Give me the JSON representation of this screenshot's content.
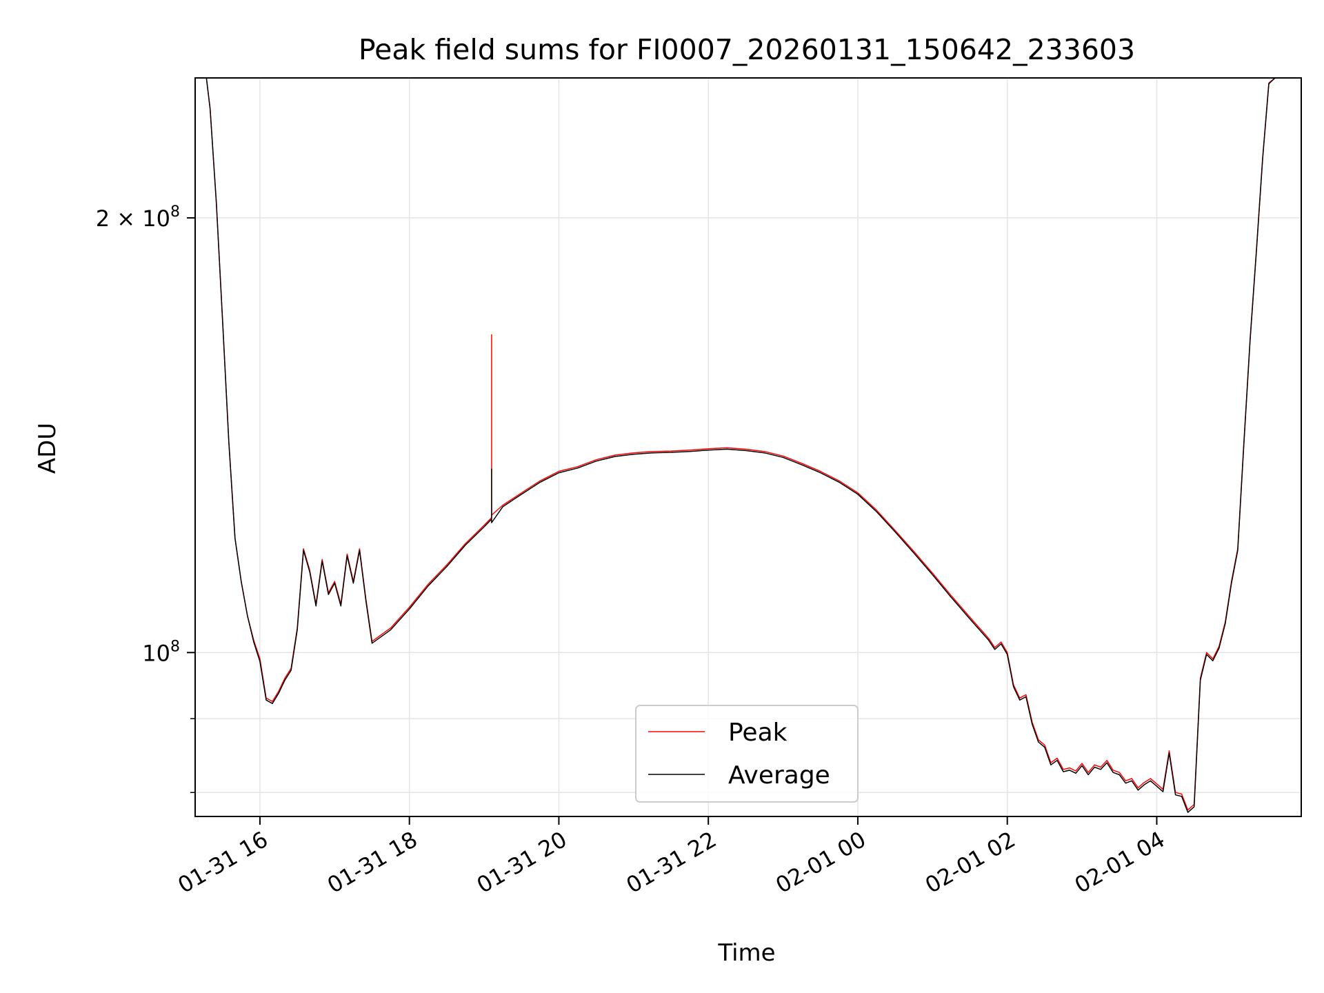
{
  "chart_data": {
    "type": "line",
    "title": "Peak field sums for FI0007_20260131_150642_233603",
    "xlabel": "Time",
    "ylabel": "ADU",
    "yscale": "log",
    "grid": true,
    "legend_position": "bottom-center",
    "x_range": [
      "2026-01-31 15:08",
      "2026-02-01 05:56"
    ],
    "ylim": [
      77000000,
      250000000
    ],
    "x_ticks": [
      {
        "value": "2026-01-31 16:00",
        "label": "01-31 16"
      },
      {
        "value": "2026-01-31 18:00",
        "label": "01-31 18"
      },
      {
        "value": "2026-01-31 20:00",
        "label": "01-31 20"
      },
      {
        "value": "2026-01-31 22:00",
        "label": "01-31 22"
      },
      {
        "value": "2026-02-01 00:00",
        "label": "02-01 00"
      },
      {
        "value": "2026-02-01 02:00",
        "label": "02-01 02"
      },
      {
        "value": "2026-02-01 04:00",
        "label": "02-01 04"
      }
    ],
    "y_ticks": [
      {
        "value": 200000000,
        "base": "2 × 10",
        "exp": "8"
      },
      {
        "value": 100000000,
        "base": "10",
        "exp": "8"
      }
    ],
    "y_minor_ticks": [
      90000000,
      80000000
    ],
    "series": [
      {
        "name": "Peak",
        "color": "#ff0000",
        "x": [
          "2026-01-31 15:17",
          "2026-01-31 15:20",
          "2026-01-31 15:25",
          "2026-01-31 15:30",
          "2026-01-31 15:35",
          "2026-01-31 15:40",
          "2026-01-31 15:45",
          "2026-01-31 15:50",
          "2026-01-31 15:55",
          "2026-01-31 16:00",
          "2026-01-31 16:05",
          "2026-01-31 16:10",
          "2026-01-31 16:15",
          "2026-01-31 16:20",
          "2026-01-31 16:25",
          "2026-01-31 16:30",
          "2026-01-31 16:35",
          "2026-01-31 16:40",
          "2026-01-31 16:45",
          "2026-01-31 16:50",
          "2026-01-31 16:55",
          "2026-01-31 17:00",
          "2026-01-31 17:05",
          "2026-01-31 17:10",
          "2026-01-31 17:15",
          "2026-01-31 17:20",
          "2026-01-31 17:25",
          "2026-01-31 17:30",
          "2026-01-31 17:45",
          "2026-01-31 18:00",
          "2026-01-31 18:15",
          "2026-01-31 18:30",
          "2026-01-31 18:45",
          "2026-01-31 19:00",
          "2026-01-31 19:06",
          "2026-01-31 19:06",
          "2026-01-31 19:06",
          "2026-01-31 19:15",
          "2026-01-31 19:30",
          "2026-01-31 19:45",
          "2026-01-31 20:00",
          "2026-01-31 20:15",
          "2026-01-31 20:30",
          "2026-01-31 20:45",
          "2026-01-31 21:00",
          "2026-01-31 21:15",
          "2026-01-31 21:30",
          "2026-01-31 21:45",
          "2026-01-31 22:00",
          "2026-01-31 22:15",
          "2026-01-31 22:30",
          "2026-01-31 22:45",
          "2026-01-31 23:00",
          "2026-01-31 23:15",
          "2026-01-31 23:30",
          "2026-01-31 23:45",
          "2026-02-01 00:00",
          "2026-02-01 00:15",
          "2026-02-01 00:30",
          "2026-02-01 00:45",
          "2026-02-01 01:00",
          "2026-02-01 01:15",
          "2026-02-01 01:30",
          "2026-02-01 01:45",
          "2026-02-01 01:50",
          "2026-02-01 01:55",
          "2026-02-01 02:00",
          "2026-02-01 02:05",
          "2026-02-01 02:10",
          "2026-02-01 02:15",
          "2026-02-01 02:20",
          "2026-02-01 02:25",
          "2026-02-01 02:30",
          "2026-02-01 02:35",
          "2026-02-01 02:40",
          "2026-02-01 02:45",
          "2026-02-01 02:50",
          "2026-02-01 02:55",
          "2026-02-01 03:00",
          "2026-02-01 03:05",
          "2026-02-01 03:10",
          "2026-02-01 03:15",
          "2026-02-01 03:20",
          "2026-02-01 03:25",
          "2026-02-01 03:30",
          "2026-02-01 03:35",
          "2026-02-01 03:40",
          "2026-02-01 03:45",
          "2026-02-01 03:50",
          "2026-02-01 03:55",
          "2026-02-01 04:00",
          "2026-02-01 04:05",
          "2026-02-01 04:10",
          "2026-02-01 04:15",
          "2026-02-01 04:20",
          "2026-02-01 04:25",
          "2026-02-01 04:30",
          "2026-02-01 04:35",
          "2026-02-01 04:40",
          "2026-02-01 04:45",
          "2026-02-01 04:50",
          "2026-02-01 04:55",
          "2026-02-01 05:00",
          "2026-02-01 05:05",
          "2026-02-01 05:10",
          "2026-02-01 05:15",
          "2026-02-01 05:20",
          "2026-02-01 05:25",
          "2026-02-01 05:30",
          "2026-02-01 05:35",
          "2026-02-01 05:40",
          "2026-02-01 05:45"
        ],
        "y": [
          250000000,
          238000000,
          205000000,
          170000000,
          140000000,
          120000000,
          112000000,
          106000000,
          102000000,
          99000000,
          93000000,
          92500000,
          94000000,
          96000000,
          97500000,
          104000000,
          118000000,
          114000000,
          108000000,
          116000000,
          110000000,
          112000000,
          108000000,
          117000000,
          112000000,
          118000000,
          109000000,
          101800000,
          104000000,
          107500000,
          111500000,
          115000000,
          119000000,
          122500000,
          124000000,
          166000000,
          124500000,
          126500000,
          129000000,
          131500000,
          133500000,
          134500000,
          136000000,
          137000000,
          137500000,
          137800000,
          137900000,
          138100000,
          138400000,
          138600000,
          138300000,
          137800000,
          136800000,
          135200000,
          133500000,
          131500000,
          129000000,
          125500000,
          121500000,
          117500000,
          113500000,
          109500000,
          105800000,
          102300000,
          100800000,
          101700000,
          100000000,
          95000000,
          93000000,
          93500000,
          89500000,
          87000000,
          86300000,
          83900000,
          84500000,
          83000000,
          83200000,
          82800000,
          83800000,
          82600000,
          83600000,
          83300000,
          84200000,
          82900000,
          82600000,
          81500000,
          81800000,
          80600000,
          81300000,
          81800000,
          81100000,
          80400000,
          85500000,
          80000000,
          79800000,
          77800000,
          78500000,
          96000000,
          100000000,
          99000000,
          101000000,
          105000000,
          112000000,
          118000000,
          140000000,
          165000000,
          190000000,
          220000000,
          248000000,
          250000000,
          250000000,
          250000000
        ]
      },
      {
        "name": "Average",
        "color": "#000000",
        "x": [
          "2026-01-31 15:17",
          "2026-01-31 15:20",
          "2026-01-31 15:25",
          "2026-01-31 15:30",
          "2026-01-31 15:35",
          "2026-01-31 15:40",
          "2026-01-31 15:45",
          "2026-01-31 15:50",
          "2026-01-31 15:55",
          "2026-01-31 16:00",
          "2026-01-31 16:05",
          "2026-01-31 16:10",
          "2026-01-31 16:15",
          "2026-01-31 16:20",
          "2026-01-31 16:25",
          "2026-01-31 16:30",
          "2026-01-31 16:35",
          "2026-01-31 16:40",
          "2026-01-31 16:45",
          "2026-01-31 16:50",
          "2026-01-31 16:55",
          "2026-01-31 17:00",
          "2026-01-31 17:05",
          "2026-01-31 17:10",
          "2026-01-31 17:15",
          "2026-01-31 17:20",
          "2026-01-31 17:25",
          "2026-01-31 17:30",
          "2026-01-31 17:45",
          "2026-01-31 18:00",
          "2026-01-31 18:15",
          "2026-01-31 18:30",
          "2026-01-31 18:45",
          "2026-01-31 19:00",
          "2026-01-31 19:06",
          "2026-01-31 19:06",
          "2026-01-31 19:06",
          "2026-01-31 19:15",
          "2026-01-31 19:30",
          "2026-01-31 19:45",
          "2026-01-31 20:00",
          "2026-01-31 20:15",
          "2026-01-31 20:30",
          "2026-01-31 20:45",
          "2026-01-31 21:00",
          "2026-01-31 21:15",
          "2026-01-31 21:30",
          "2026-01-31 21:45",
          "2026-01-31 22:00",
          "2026-01-31 22:15",
          "2026-01-31 22:30",
          "2026-01-31 22:45",
          "2026-01-31 23:00",
          "2026-01-31 23:15",
          "2026-01-31 23:30",
          "2026-01-31 23:45",
          "2026-02-01 00:00",
          "2026-02-01 00:15",
          "2026-02-01 00:30",
          "2026-02-01 00:45",
          "2026-02-01 01:00",
          "2026-02-01 01:15",
          "2026-02-01 01:30",
          "2026-02-01 01:45",
          "2026-02-01 01:50",
          "2026-02-01 01:55",
          "2026-02-01 02:00",
          "2026-02-01 02:05",
          "2026-02-01 02:10",
          "2026-02-01 02:15",
          "2026-02-01 02:20",
          "2026-02-01 02:25",
          "2026-02-01 02:30",
          "2026-02-01 02:35",
          "2026-02-01 02:40",
          "2026-02-01 02:45",
          "2026-02-01 02:50",
          "2026-02-01 02:55",
          "2026-02-01 03:00",
          "2026-02-01 03:05",
          "2026-02-01 03:10",
          "2026-02-01 03:15",
          "2026-02-01 03:20",
          "2026-02-01 03:25",
          "2026-02-01 03:30",
          "2026-02-01 03:35",
          "2026-02-01 03:40",
          "2026-02-01 03:45",
          "2026-02-01 03:50",
          "2026-02-01 03:55",
          "2026-02-01 04:00",
          "2026-02-01 04:05",
          "2026-02-01 04:10",
          "2026-02-01 04:15",
          "2026-02-01 04:20",
          "2026-02-01 04:25",
          "2026-02-01 04:30",
          "2026-02-01 04:35",
          "2026-02-01 04:40",
          "2026-02-01 04:45",
          "2026-02-01 04:50",
          "2026-02-01 04:55",
          "2026-02-01 05:00",
          "2026-02-01 05:05",
          "2026-02-01 05:10",
          "2026-02-01 05:15",
          "2026-02-01 05:20",
          "2026-02-01 05:25",
          "2026-02-01 05:30",
          "2026-02-01 05:35",
          "2026-02-01 05:40",
          "2026-02-01 05:45"
        ],
        "y": [
          250000000,
          238000000,
          205000000,
          170000000,
          140000000,
          120000000,
          112000000,
          106000000,
          101700000,
          98600000,
          92700000,
          92200000,
          93700000,
          95700000,
          97200000,
          103700000,
          117700000,
          113700000,
          107700000,
          115700000,
          109700000,
          111700000,
          107700000,
          116700000,
          111700000,
          117700000,
          108700000,
          101500000,
          103700000,
          107200000,
          111200000,
          114700000,
          118700000,
          122200000,
          123700000,
          134000000,
          123000000,
          126200000,
          128700000,
          131200000,
          133200000,
          134200000,
          135700000,
          136700000,
          137200000,
          137500000,
          137600000,
          137800000,
          138100000,
          138300000,
          138000000,
          137500000,
          136500000,
          134900000,
          133200000,
          131200000,
          128700000,
          125200000,
          121200000,
          117200000,
          113200000,
          109200000,
          105500000,
          102000000,
          100500000,
          101400000,
          99700000,
          94700000,
          92700000,
          93200000,
          89200000,
          86700000,
          86000000,
          83600000,
          84200000,
          82700000,
          82900000,
          82500000,
          83500000,
          82300000,
          83300000,
          83000000,
          83900000,
          82600000,
          82300000,
          81200000,
          81500000,
          80300000,
          81000000,
          81500000,
          80800000,
          80100000,
          85200000,
          79700000,
          79500000,
          77500000,
          78200000,
          95700000,
          99700000,
          98700000,
          100700000,
          104700000,
          111700000,
          117700000,
          139700000,
          164700000,
          189700000,
          219700000,
          247700000,
          250000000,
          250000000,
          250000000
        ]
      }
    ]
  }
}
